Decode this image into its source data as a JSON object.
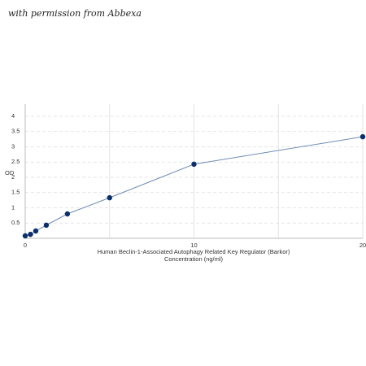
{
  "watermark": "with permission from Abbexa",
  "chart_data": {
    "type": "line",
    "xlabel": [
      "Human Beclin-1-Associated Autophagy Related Key Regulator (Barkor)",
      "Concentration (ng/ml)"
    ],
    "ylabel": "OD",
    "x": [
      0,
      0.3125,
      0.625,
      1.25,
      2.5,
      5,
      10,
      20
    ],
    "series": [
      {
        "color": "#0b2f6b",
        "values": [
          0.08,
          0.13,
          0.24,
          0.43,
          0.8,
          1.33,
          2.43,
          3.33
        ]
      }
    ],
    "line_color": "#6f8db3",
    "xlim": [
      0,
      20
    ],
    "ylim": [
      0,
      4.4
    ],
    "xticks": [
      0,
      10,
      20
    ],
    "xgrid": [
      0,
      5,
      10,
      15,
      20
    ],
    "yticks": [
      0.5,
      1,
      1.5,
      2,
      2.5,
      3,
      3.5,
      4
    ],
    "grid": true
  }
}
